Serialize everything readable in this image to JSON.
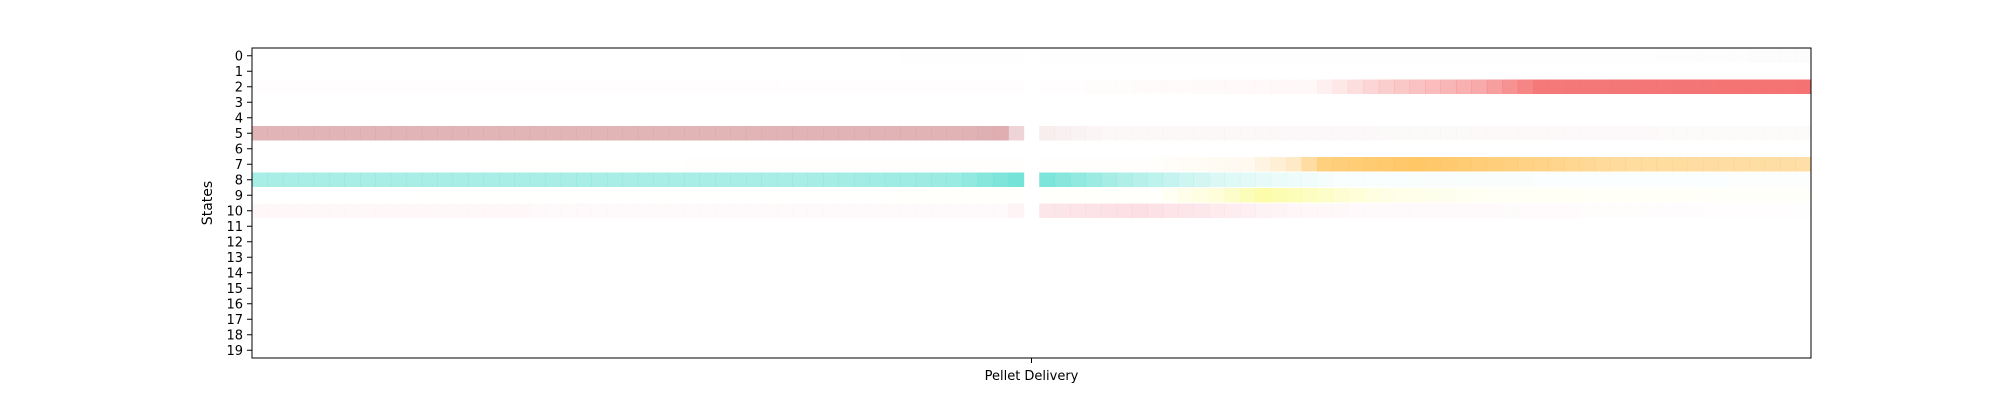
{
  "chart_data": {
    "type": "heatmap",
    "title": "",
    "xlabel": "",
    "ylabel": "States",
    "x_ticks": [
      "Pellet Delivery"
    ],
    "y_ticks": [
      "0",
      "1",
      "2",
      "3",
      "4",
      "5",
      "6",
      "7",
      "8",
      "9",
      "10",
      "11",
      "12",
      "13",
      "14",
      "15",
      "16",
      "17",
      "18",
      "19"
    ],
    "grid": false,
    "n_bins": 101,
    "gap_bin": 50,
    "base_color": "#ffffff",
    "state_colors": {
      "2": "#f47272",
      "5": "#d9a0a3",
      "7": "#ffc45e",
      "8": "#6fe2d6",
      "9": "#fbfb86",
      "10": "#f7b8c4"
    },
    "series": [
      {
        "state": 0,
        "intensity_knots": [
          [
            0,
            0.0
          ],
          [
            88,
            0.02
          ],
          [
            100,
            0.06
          ]
        ]
      },
      {
        "state": 2,
        "intensity_knots": [
          [
            0,
            0.01
          ],
          [
            50,
            0.01
          ],
          [
            68,
            0.05
          ],
          [
            73,
            0.35
          ],
          [
            79,
            0.6
          ],
          [
            83,
            0.95
          ],
          [
            100,
            1.0
          ]
        ]
      },
      {
        "state": 5,
        "intensity_knots": [
          [
            0,
            0.78
          ],
          [
            45,
            0.8
          ],
          [
            48,
            0.85
          ],
          [
            49,
            0.45
          ],
          [
            51,
            0.18
          ],
          [
            55,
            0.08
          ],
          [
            85,
            0.06
          ],
          [
            100,
            0.05
          ]
        ]
      },
      {
        "state": 7,
        "intensity_knots": [
          [
            0,
            0.0
          ],
          [
            58,
            0.02
          ],
          [
            64,
            0.1
          ],
          [
            67,
            0.35
          ],
          [
            69,
            0.8
          ],
          [
            75,
            0.95
          ],
          [
            88,
            0.6
          ],
          [
            100,
            0.55
          ]
        ]
      },
      {
        "state": 8,
        "intensity_knots": [
          [
            0,
            0.6
          ],
          [
            35,
            0.6
          ],
          [
            45,
            0.7
          ],
          [
            49,
            0.95
          ],
          [
            51,
            0.9
          ],
          [
            56,
            0.55
          ],
          [
            62,
            0.25
          ],
          [
            70,
            0.05
          ],
          [
            100,
            0.02
          ]
        ]
      },
      {
        "state": 9,
        "intensity_knots": [
          [
            0,
            0.0
          ],
          [
            58,
            0.03
          ],
          [
            62,
            0.3
          ],
          [
            65,
            0.7
          ],
          [
            68,
            0.5
          ],
          [
            73,
            0.2
          ],
          [
            80,
            0.08
          ],
          [
            100,
            0.04
          ]
        ]
      },
      {
        "state": 10,
        "intensity_knots": [
          [
            0,
            0.1
          ],
          [
            48,
            0.08
          ],
          [
            51,
            0.35
          ],
          [
            57,
            0.45
          ],
          [
            63,
            0.25
          ],
          [
            68,
            0.1
          ],
          [
            85,
            0.05
          ],
          [
            100,
            0.02
          ]
        ]
      }
    ]
  }
}
